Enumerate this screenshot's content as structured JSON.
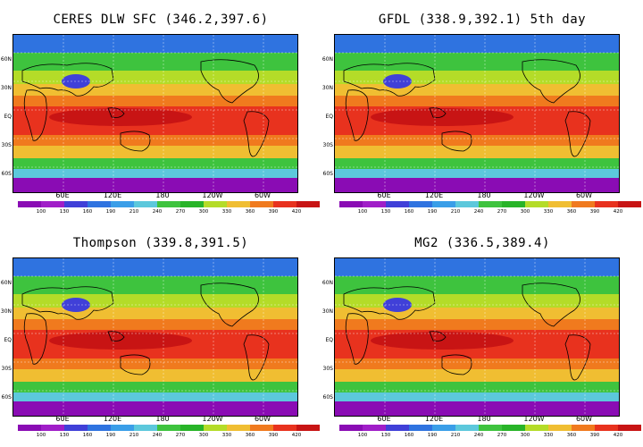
{
  "panels": [
    {
      "title": "CERES DLW SFC (346.2,397.6)"
    },
    {
      "title": "GFDL (338.9,392.1) 5th day"
    },
    {
      "title": "Thompson (339.8,391.5)"
    },
    {
      "title": "MG2 (336.5,389.4)"
    }
  ],
  "lat_labels": [
    "60N",
    "30N",
    "EQ",
    "30S",
    "60S"
  ],
  "lon_labels": [
    "60E",
    "120E",
    "180",
    "120W",
    "60W"
  ],
  "colorbar": {
    "levels": [
      "100",
      "130",
      "160",
      "190",
      "210",
      "240",
      "270",
      "300",
      "330",
      "360",
      "390",
      "420"
    ],
    "colors": [
      "#8a0cb4",
      "#a01ec8",
      "#4040d8",
      "#2f73e0",
      "#3a9ee8",
      "#5cc8dc",
      "#3ec33e",
      "#28b428",
      "#b4dc28",
      "#f0be32",
      "#f07a1e",
      "#e8321e",
      "#c81414"
    ]
  },
  "zones": {
    "polar_s": "#8a0cb4",
    "subpolar_s": "#5cc8dc",
    "midlat_s": "#3ec33e",
    "subtrop_s": "#b4dc28",
    "trop_s": "#f0be32",
    "warm": "#f07a1e",
    "hot": "#e8321e",
    "core": "#c81414",
    "midlat_n": "#3ec33e",
    "subpolar_n": "#2f73e0",
    "tibet": "#4040d8"
  }
}
